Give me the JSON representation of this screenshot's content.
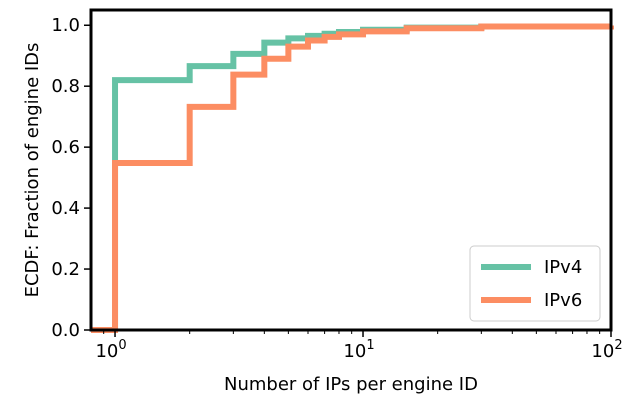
{
  "chart_data": {
    "type": "line",
    "title": "",
    "xlabel": "Number of IPs per engine ID",
    "ylabel": "ECDF: Fraction of engine IDs",
    "x_scale": "log",
    "xlim": [
      0.8,
      100
    ],
    "ylim": [
      0.0,
      1.05
    ],
    "x_ticks": [
      {
        "value": 1,
        "base": "10",
        "exp": "0"
      },
      {
        "value": 10,
        "base": "10",
        "exp": "1"
      },
      {
        "value": 100,
        "base": "10",
        "exp": "2"
      }
    ],
    "y_ticks": [
      {
        "value": 0.0,
        "label": "0.0"
      },
      {
        "value": 0.2,
        "label": "0.2"
      },
      {
        "value": 0.4,
        "label": "0.4"
      },
      {
        "value": 0.6,
        "label": "0.6"
      },
      {
        "value": 0.8,
        "label": "0.8"
      },
      {
        "value": 1.0,
        "label": "1.0"
      }
    ],
    "grid": false,
    "legend_position": "bottom-right",
    "series": [
      {
        "name": "IPv4",
        "color": "#66c2a5",
        "step_points": [
          [
            1,
            0.82
          ],
          [
            2,
            0.866
          ],
          [
            3,
            0.906
          ],
          [
            4,
            0.943
          ],
          [
            5,
            0.957
          ],
          [
            6,
            0.965
          ],
          [
            7,
            0.972
          ],
          [
            8,
            0.978
          ],
          [
            10,
            0.985
          ],
          [
            15,
            0.992
          ],
          [
            30,
            0.996
          ],
          [
            100,
            0.998
          ]
        ]
      },
      {
        "name": "IPv6",
        "color": "#fc8d62",
        "step_points": [
          [
            1,
            0.548
          ],
          [
            2,
            0.732
          ],
          [
            3,
            0.838
          ],
          [
            4,
            0.89
          ],
          [
            5,
            0.93
          ],
          [
            6,
            0.95
          ],
          [
            7,
            0.962
          ],
          [
            8,
            0.97
          ],
          [
            10,
            0.98
          ],
          [
            15,
            0.99
          ],
          [
            30,
            0.996
          ],
          [
            100,
            0.999
          ]
        ]
      }
    ]
  }
}
